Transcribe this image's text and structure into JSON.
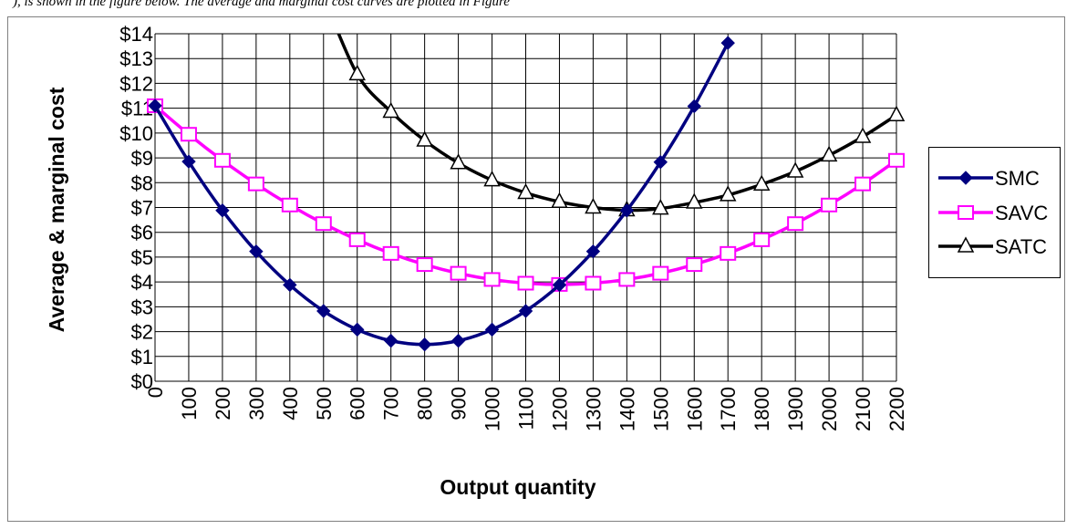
{
  "page": {
    "caption_fragment": "), is shown in the figure below. The average and marginal cost curves are plotted in Figure"
  },
  "chart_data": {
    "type": "line",
    "title": "",
    "xlabel": "Output quantity",
    "ylabel": "Average & marginal cost",
    "xlim": [
      0,
      2200
    ],
    "ylim": [
      0,
      14
    ],
    "x_ticks": [
      0,
      100,
      200,
      300,
      400,
      500,
      600,
      700,
      800,
      900,
      1000,
      1100,
      1200,
      1300,
      1400,
      1500,
      1600,
      1700,
      1800,
      1900,
      2000,
      2100,
      2200
    ],
    "y_ticks": [
      "$0",
      "$1",
      "$2",
      "$3",
      "$4",
      "$5",
      "$6",
      "$7",
      "$8",
      "$9",
      "$10",
      "$11",
      "$12",
      "$13",
      "$14"
    ],
    "grid": true,
    "legend_position": "right",
    "series": [
      {
        "name": "SMC",
        "color": "#000080",
        "marker": "diamond",
        "x": [
          0,
          100,
          200,
          300,
          400,
          500,
          600,
          700,
          800,
          900,
          1000,
          1100,
          1200,
          1300,
          1400,
          1500,
          1600,
          1700
        ],
        "values": [
          11.1,
          8.85,
          6.88,
          5.23,
          3.88,
          2.83,
          2.08,
          1.63,
          1.48,
          1.63,
          2.08,
          2.83,
          3.88,
          5.23,
          6.88,
          8.83,
          11.08,
          13.63
        ]
      },
      {
        "name": "SAVC",
        "color": "#FF00FF",
        "marker": "square",
        "x": [
          0,
          100,
          200,
          300,
          400,
          500,
          600,
          700,
          800,
          900,
          1000,
          1100,
          1200,
          1300,
          1400,
          1500,
          1600,
          1700,
          1800,
          1900,
          2000,
          2100,
          2200
        ],
        "values": [
          11.1,
          9.95,
          8.9,
          7.95,
          7.1,
          6.35,
          5.7,
          5.15,
          4.7,
          4.35,
          4.1,
          3.95,
          3.9,
          3.95,
          4.1,
          4.35,
          4.7,
          5.15,
          5.7,
          6.35,
          7.1,
          7.95,
          8.9
        ]
      },
      {
        "name": "SATC",
        "color": "#000000",
        "marker": "triangle",
        "x": [
          600,
          700,
          800,
          900,
          1000,
          1100,
          1200,
          1300,
          1400,
          1500,
          1600,
          1700,
          1800,
          1900,
          2000,
          2100,
          2200
        ],
        "values": [
          12.37,
          10.86,
          9.7,
          8.79,
          8.1,
          7.59,
          7.23,
          7.0,
          6.89,
          6.96,
          7.2,
          7.5,
          7.93,
          8.45,
          9.1,
          9.85,
          10.72
        ]
      }
    ]
  }
}
